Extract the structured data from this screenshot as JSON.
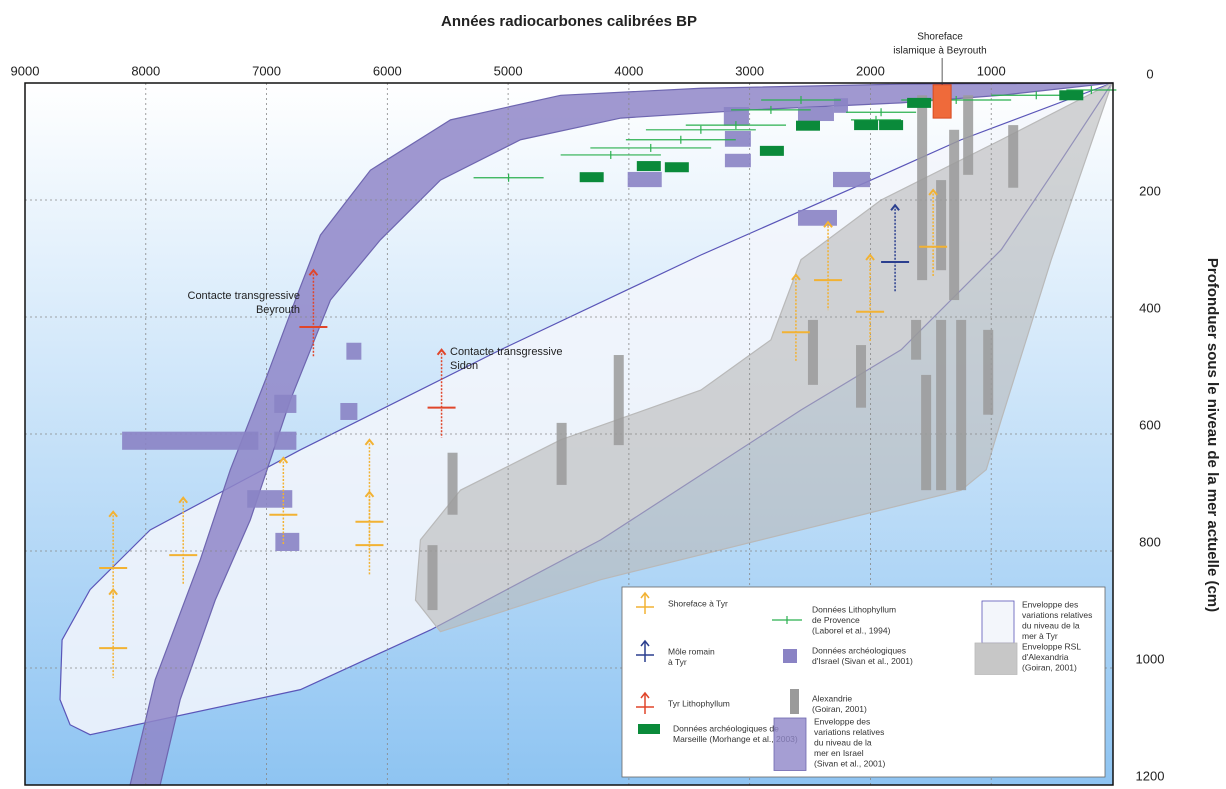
{
  "chart_data": {
    "type": "scatter",
    "xlabel": "Années radiocarbones calibrées BP",
    "ylabel": "Profonduer sous le niveau de la mer actuelle (cm)",
    "xlim": [
      9000,
      0
    ],
    "ylim": [
      0,
      1200
    ],
    "xticks": [
      9000,
      8000,
      7000,
      6000,
      5000,
      4000,
      3000,
      2000,
      1000
    ],
    "yticks": [
      0,
      200,
      400,
      600,
      800,
      1000,
      1200
    ],
    "grid": true,
    "series": [
      {
        "name": [
          "Shoreface à Tyr"
        ],
        "type": "arrow",
        "color": "#f2b233",
        "x": [
          8270,
          8270,
          7690,
          6861,
          6148,
          6148,
          2617,
          2351,
          2003,
          1481
        ],
        "y": [
          829,
          966,
          807,
          738,
          750,
          790,
          426,
          337,
          391,
          280
        ],
        "top": [
          733,
          866,
          709,
          641,
          610,
          699,
          328,
          238,
          294,
          183
        ]
      },
      {
        "name": [
          "Môle romain",
          "à Tyr"
        ],
        "type": "arrow",
        "color": "#2b3f8f",
        "x": [
          1796
        ],
        "y": [
          306
        ],
        "top": [
          209
        ]
      },
      {
        "name": [
          "Tyr Lithophyllum"
        ],
        "type": "arrow",
        "color": "#e0452a",
        "x": [
          6612,
          5551
        ],
        "y": [
          417,
          555
        ],
        "top": [
          320,
          456
        ]
      },
      {
        "name": [
          "Données archéologiques de",
          "Marseille (Morhange et al., 2003)"
        ],
        "type": "rect",
        "color": "#0a8a3a",
        "x": [
          4308,
          3835,
          3603,
          2816,
          2517,
          1829,
          2036,
          1597,
          337
        ],
        "y": [
          161,
          142,
          144,
          116,
          73,
          72,
          72,
          34,
          21
        ]
      },
      {
        "name": [
          "Données Lithophyllum",
          "de Provence",
          "(Laborel et al., 1994)"
        ],
        "type": "errorbar",
        "color": "#2bb04f",
        "x": [
          4996,
          4150,
          3819,
          3570,
          3404,
          3114,
          2824,
          2575,
          1954,
          1912,
          1290,
          627,
          171
        ],
        "y": [
          162,
          123,
          111,
          97,
          80,
          72,
          46,
          29,
          63,
          50,
          29,
          21,
          12
        ],
        "xerr": [
          290,
          415,
          500,
          455,
          455,
          415,
          330,
          330,
          207,
          290,
          455,
          373,
          207
        ]
      },
      {
        "name": [
          "Données archéologiques",
          "d'Israel (Sivan et al., 2001)"
        ],
        "type": "box",
        "color": "#8a83c4",
        "x0": [
          3214,
          2600,
          2302,
          3205,
          3205,
          4010,
          2310,
          2600,
          6339,
          6936,
          6389,
          8196,
          6936,
          7160,
          6927
        ],
        "x1": [
          3006,
          2302,
          2186,
          2990,
          2990,
          3728,
          2003,
          2277,
          6215,
          6753,
          6248,
          7068,
          6753,
          6787,
          6729
        ],
        "y0": [
          41,
          41,
          26,
          82,
          121,
          152,
          152,
          217,
          444,
          533,
          547,
          596,
          596,
          696,
          769
        ],
        "y1": [
          73,
          65,
          51,
          109,
          144,
          178,
          178,
          244,
          473,
          564,
          576,
          627,
          627,
          726,
          800
        ]
      },
      {
        "name": [
          "Alexandrie",
          "(Goiran, 2001)"
        ],
        "type": "bar",
        "color": "#9a9a9a",
        "x": [
          1572,
          1307,
          1415,
          1191,
          818,
          2476,
          2078,
          1622,
          1539,
          1415,
          1249,
          1025,
          4084,
          4557,
          5460,
          5626
        ],
        "y0": [
          21,
          80,
          166,
          21,
          72,
          405,
          448,
          405,
          499,
          405,
          405,
          422,
          465,
          581,
          632,
          790
        ],
        "y1": [
          337,
          371,
          320,
          157,
          179,
          516,
          555,
          473,
          696,
          696,
          696,
          567,
          619,
          687,
          738,
          901
        ]
      },
      {
        "name": [
          "Enveloppe des",
          "variations relatives",
          "du niveau de la",
          "mer à Tyr"
        ],
        "type": "area",
        "color": "#f3f6fb",
        "edge": "#5a55b8",
        "x": [
          0,
          1249,
          1995,
          3404,
          5062,
          6720,
          7964,
          8461,
          8693,
          8710,
          8627,
          8461,
          6720,
          5643,
          4233,
          2575,
          1746,
          917,
          420
        ],
        "y": [
          0,
          97,
          166,
          294,
          456,
          627,
          764,
          866,
          952,
          1054,
          1097,
          1114,
          1037,
          935,
          781,
          559,
          456,
          285,
          132
        ]
      },
      {
        "name": [
          "Enveloppe RSL",
          "d'Alexandria",
          "(Goiran, 2001)"
        ],
        "type": "area",
        "color": "#b9b9b9",
        "edge": "#b9b9b9",
        "x": [
          0,
          503,
          917,
          1041,
          1249,
          2575,
          4233,
          5560,
          5767,
          5726,
          5394,
          4565,
          3404,
          2824,
          2575,
          1912,
          917
        ],
        "y": [
          0,
          302,
          576,
          661,
          696,
          764,
          849,
          938,
          884,
          781,
          696,
          610,
          525,
          439,
          302,
          200,
          97
        ]
      },
      {
        "name": [
          "Enveloppe des",
          "variations relatives",
          "du niveau de la",
          "mer en Israel",
          "(Sivan et al., 2001)"
        ],
        "type": "area",
        "color": "#8f86c8",
        "edge": "#6e66b0",
        "x": [
          8130,
          7922,
          7549,
          7300,
          7010,
          6762,
          6554,
          6140,
          5477,
          4565,
          3404,
          1746,
          0,
          917,
          1746,
          2990,
          4067,
          4897,
          5560,
          6057,
          6471,
          6803,
          7135,
          7425,
          7715,
          7881
        ],
        "y": [
          1200,
          1020,
          815,
          661,
          508,
          371,
          260,
          149,
          63,
          21,
          9,
          2,
          0,
          21,
          34,
          46,
          60,
          97,
          166,
          268,
          371,
          542,
          747,
          884,
          1054,
          1200
        ]
      }
    ],
    "annotations": [
      {
        "text": [
          "Shoreface",
          "islamique à Beyrouth"
        ],
        "color": "#ef6a3a",
        "x0": 1481,
        "x1": 1332,
        "y0": 3,
        "y1": 60
      },
      {
        "text": [
          "Contacte transgressive",
          "Beyrouth"
        ]
      },
      {
        "text": [
          "Contacte transgressive",
          "Sidon"
        ]
      }
    ]
  }
}
